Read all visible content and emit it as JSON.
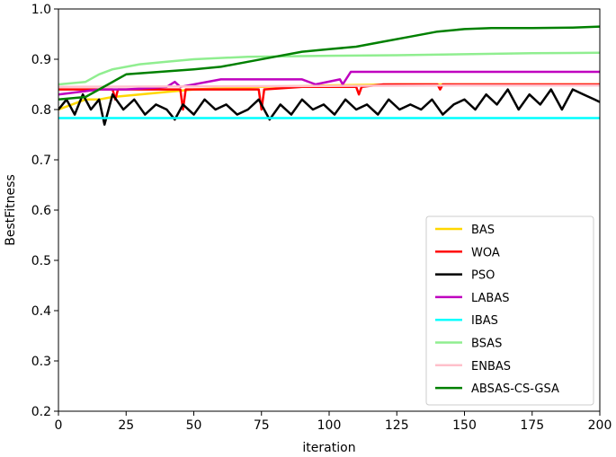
{
  "chart_data": {
    "type": "line",
    "title": "",
    "xlabel": "iteration",
    "ylabel": "BestFitness",
    "xlim": [
      0,
      200
    ],
    "ylim": [
      0.2,
      1.0
    ],
    "xticks": [
      0,
      25,
      50,
      75,
      100,
      125,
      150,
      175,
      200
    ],
    "yticks": [
      0.2,
      0.3,
      0.4,
      0.5,
      0.6,
      0.7,
      0.8,
      0.9,
      1.0
    ],
    "grid": false,
    "legend_position": "lower-right",
    "series": [
      {
        "name": "BAS",
        "color": "#FFD700",
        "x": [
          0,
          5,
          10,
          15,
          20,
          30,
          40,
          50,
          75,
          100,
          125,
          150,
          175,
          200
        ],
        "y": [
          0.8,
          0.81,
          0.82,
          0.82,
          0.825,
          0.83,
          0.835,
          0.84,
          0.845,
          0.848,
          0.85,
          0.85,
          0.85,
          0.85
        ]
      },
      {
        "name": "WOA",
        "color": "#FF0000",
        "x": [
          0,
          10,
          20,
          21,
          22,
          30,
          45,
          46,
          47,
          55,
          74,
          75,
          76,
          90,
          110,
          111,
          112,
          120,
          140,
          141,
          142,
          160,
          180,
          200
        ],
        "y": [
          0.84,
          0.84,
          0.84,
          0.82,
          0.84,
          0.84,
          0.84,
          0.8,
          0.84,
          0.84,
          0.84,
          0.8,
          0.84,
          0.845,
          0.845,
          0.83,
          0.845,
          0.85,
          0.85,
          0.84,
          0.85,
          0.85,
          0.85,
          0.85
        ]
      },
      {
        "name": "PSO",
        "color": "#000000",
        "x": [
          0,
          3,
          6,
          9,
          12,
          15,
          17,
          20,
          24,
          28,
          32,
          36,
          40,
          43,
          46,
          50,
          54,
          58,
          62,
          66,
          70,
          74,
          78,
          82,
          86,
          90,
          94,
          98,
          102,
          106,
          110,
          114,
          118,
          122,
          126,
          130,
          134,
          138,
          142,
          146,
          150,
          154,
          158,
          162,
          166,
          170,
          174,
          178,
          182,
          186,
          190,
          194,
          198,
          200
        ],
        "y": [
          0.8,
          0.82,
          0.79,
          0.83,
          0.8,
          0.82,
          0.77,
          0.83,
          0.8,
          0.82,
          0.79,
          0.81,
          0.8,
          0.78,
          0.81,
          0.79,
          0.82,
          0.8,
          0.81,
          0.79,
          0.8,
          0.82,
          0.78,
          0.81,
          0.79,
          0.82,
          0.8,
          0.81,
          0.79,
          0.82,
          0.8,
          0.81,
          0.79,
          0.82,
          0.8,
          0.81,
          0.8,
          0.82,
          0.79,
          0.81,
          0.82,
          0.8,
          0.83,
          0.81,
          0.84,
          0.8,
          0.83,
          0.81,
          0.84,
          0.8,
          0.84,
          0.83,
          0.82,
          0.815
        ]
      },
      {
        "name": "LABAS",
        "color": "#BF00BF",
        "x": [
          0,
          15,
          25,
          40,
          43,
          45,
          60,
          90,
          95,
          104,
          105,
          108,
          140,
          200
        ],
        "y": [
          0.83,
          0.84,
          0.84,
          0.845,
          0.855,
          0.845,
          0.86,
          0.86,
          0.85,
          0.86,
          0.85,
          0.875,
          0.875,
          0.875
        ]
      },
      {
        "name": "IBAS",
        "color": "#00FFFF",
        "x": [
          0,
          200
        ],
        "y": [
          0.783,
          0.783
        ]
      },
      {
        "name": "BSAS",
        "color": "#90EE90",
        "x": [
          0,
          10,
          15,
          20,
          30,
          40,
          50,
          70,
          100,
          125,
          150,
          175,
          200
        ],
        "y": [
          0.85,
          0.855,
          0.87,
          0.88,
          0.89,
          0.895,
          0.9,
          0.905,
          0.907,
          0.908,
          0.91,
          0.912,
          0.913
        ]
      },
      {
        "name": "ENBAS",
        "color": "#FFC0CB",
        "x": [
          0,
          50,
          100,
          150,
          200
        ],
        "y": [
          0.845,
          0.846,
          0.847,
          0.848,
          0.848
        ]
      },
      {
        "name": "ABSAS-CS-GSA",
        "color": "#008000",
        "x": [
          0,
          10,
          15,
          25,
          50,
          60,
          70,
          80,
          90,
          100,
          110,
          120,
          130,
          140,
          150,
          160,
          175,
          190,
          200
        ],
        "y": [
          0.82,
          0.825,
          0.84,
          0.87,
          0.88,
          0.885,
          0.895,
          0.905,
          0.915,
          0.92,
          0.925,
          0.935,
          0.945,
          0.955,
          0.96,
          0.962,
          0.962,
          0.963,
          0.965
        ]
      }
    ]
  }
}
